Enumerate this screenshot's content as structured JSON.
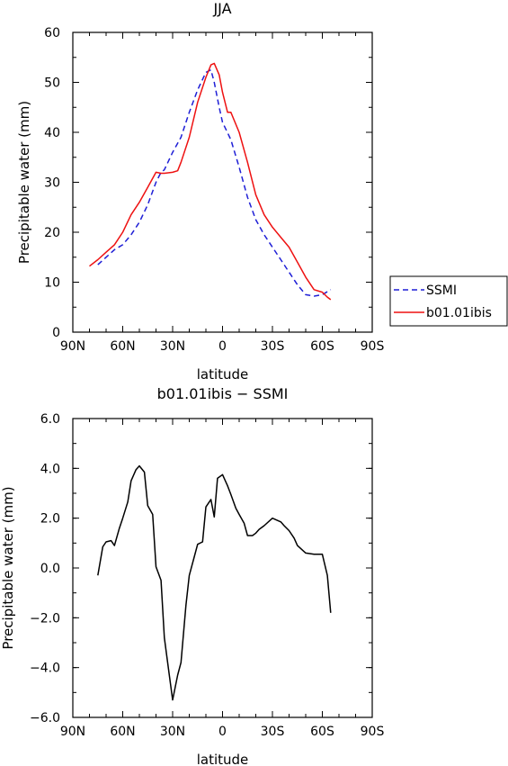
{
  "chart_data": [
    {
      "type": "line",
      "title": "JJA",
      "xlabel": "latitude",
      "ylabel": "Precipitable water (mm)",
      "xlim": [
        -90,
        90
      ],
      "ylim": [
        0,
        60
      ],
      "x_ticks": [
        -90,
        -60,
        -30,
        0,
        30,
        60,
        90
      ],
      "x_tick_labels": [
        "90N",
        "60N",
        "30N",
        "0",
        "30S",
        "60S",
        "90S"
      ],
      "y_ticks": [
        0,
        10,
        20,
        30,
        40,
        50,
        60
      ],
      "y_tick_labels": [
        "0",
        "10",
        "20",
        "30",
        "40",
        "50",
        "60"
      ],
      "legend_position": "right",
      "series": [
        {
          "name": "SSMI",
          "color": "#1f1fd6",
          "dash": "dashed",
          "x": [
            -75,
            -70,
            -65,
            -60,
            -55,
            -50,
            -45,
            -40,
            -37,
            -35,
            -30,
            -25,
            -20,
            -15,
            -10,
            -7,
            -5,
            -2,
            0,
            5,
            10,
            15,
            20,
            25,
            30,
            35,
            40,
            45,
            50,
            55,
            60,
            65
          ],
          "y": [
            13.5,
            15,
            16.5,
            17.5,
            19.5,
            22,
            25.5,
            30,
            32,
            32.5,
            36,
            39,
            44,
            48.5,
            52,
            52.5,
            50,
            45,
            42,
            38.5,
            33,
            27,
            22.5,
            19.5,
            17,
            14.5,
            12,
            9.5,
            7.5,
            7.2,
            7.5,
            8.5
          ]
        },
        {
          "name": "b01.01ibis",
          "color": "#ee1111",
          "dash": "solid",
          "x": [
            -80,
            -75,
            -70,
            -65,
            -60,
            -55,
            -50,
            -45,
            -40,
            -37,
            -35,
            -30,
            -27,
            -25,
            -20,
            -15,
            -10,
            -7,
            -5,
            -2,
            0,
            3,
            5,
            10,
            15,
            20,
            25,
            30,
            35,
            40,
            45,
            50,
            55,
            60,
            63,
            65
          ],
          "y": [
            13.2,
            14.5,
            16,
            17.5,
            20,
            23.5,
            26,
            29,
            32,
            31.8,
            31.8,
            32,
            32.3,
            34,
            39,
            46,
            51,
            53.5,
            53.8,
            51.5,
            48,
            44,
            44,
            40,
            34,
            27.5,
            23.5,
            21,
            19,
            17,
            14,
            11,
            8.5,
            8,
            7,
            6.5
          ]
        }
      ]
    },
    {
      "type": "line",
      "title": "b01.01ibis − SSMI",
      "xlabel": "latitude",
      "ylabel": "Precipitable water (mm)",
      "xlim": [
        -90,
        90
      ],
      "ylim": [
        -6,
        6
      ],
      "x_ticks": [
        -90,
        -60,
        -30,
        0,
        30,
        60,
        90
      ],
      "x_tick_labels": [
        "90N",
        "60N",
        "30N",
        "0",
        "30S",
        "60S",
        "90S"
      ],
      "y_ticks": [
        -6,
        -4,
        -2,
        0,
        2,
        4,
        6
      ],
      "y_tick_labels": [
        "−6.0",
        "−4.0",
        "−2.0",
        "0.0",
        "2.0",
        "4.0",
        "6.0"
      ],
      "series": [
        {
          "color": "#000000",
          "x": [
            -75,
            -72,
            -70,
            -67,
            -65,
            -62,
            -60,
            -57,
            -55,
            -52,
            -50,
            -47,
            -45,
            -42,
            -40,
            -37,
            -35,
            -32,
            -30,
            -27,
            -25,
            -22,
            -20,
            -17,
            -15,
            -12,
            -10,
            -7,
            -5,
            -3,
            0,
            3,
            5,
            8,
            10,
            13,
            15,
            18,
            20,
            22,
            25,
            30,
            35,
            37,
            40,
            43,
            45,
            50,
            55,
            60,
            63,
            65
          ],
          "y": [
            -0.3,
            0.85,
            1.05,
            1.1,
            0.9,
            1.6,
            2.0,
            2.65,
            3.5,
            3.95,
            4.1,
            3.85,
            2.5,
            2.15,
            0.05,
            -0.5,
            -2.8,
            -4.3,
            -5.3,
            -4.3,
            -3.8,
            -1.5,
            -0.3,
            0.45,
            0.95,
            1.05,
            2.45,
            2.75,
            2.05,
            3.6,
            3.75,
            3.3,
            2.95,
            2.4,
            2.15,
            1.8,
            1.3,
            1.3,
            1.4,
            1.55,
            1.7,
            2.0,
            1.85,
            1.7,
            1.5,
            1.2,
            0.9,
            0.6,
            0.55,
            0.55,
            -0.3,
            -1.8
          ]
        }
      ]
    }
  ]
}
